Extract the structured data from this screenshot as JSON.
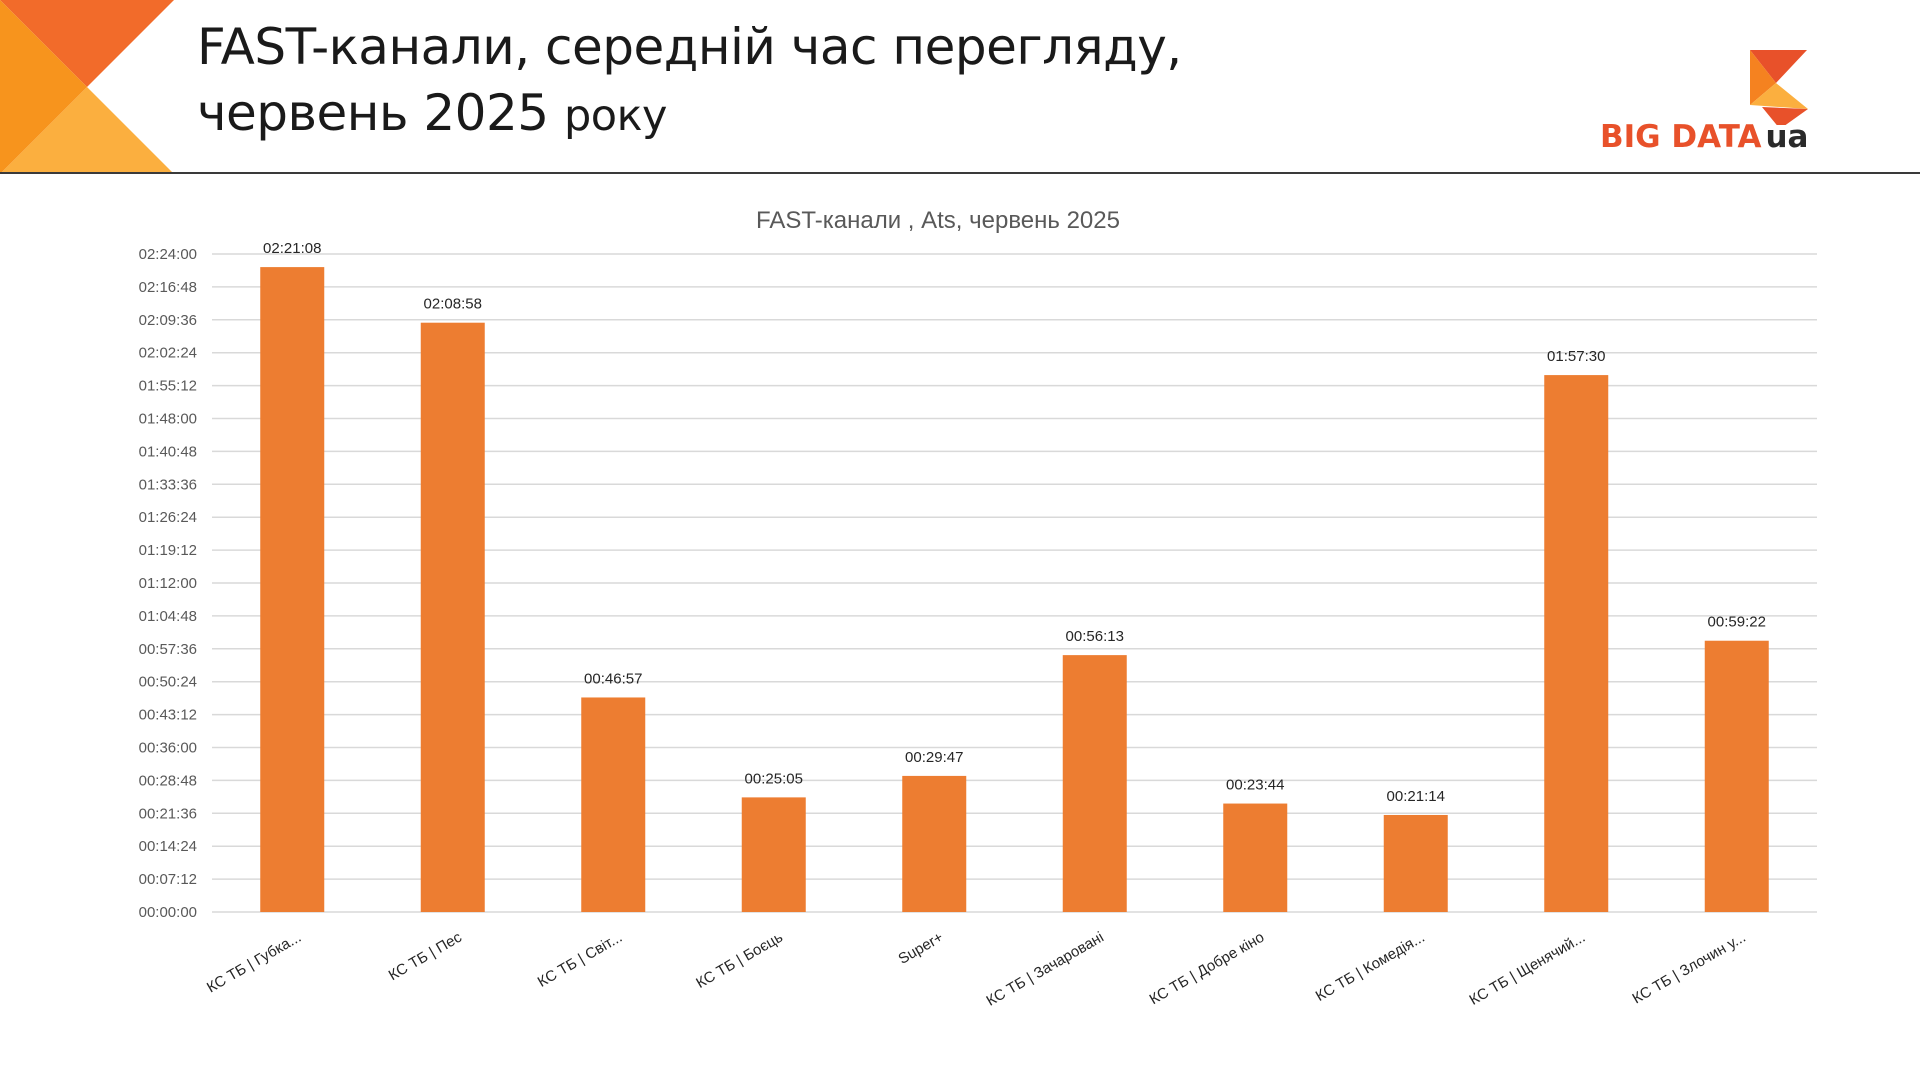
{
  "header": {
    "title_line1": "FAST-канали, середній час перегляду,",
    "title_line2_main": "червень 2025",
    "title_line2_small": "року"
  },
  "logo": {
    "text_main": "BIG DATA",
    "text_suffix": "ua"
  },
  "colors": {
    "bar": "#ED7D31",
    "gridline": "#D9D9D9",
    "corner_dark": "#F26B2A",
    "corner_light": "#FBAF3F",
    "logo_orange": "#E8512A"
  },
  "chart_data": {
    "type": "bar",
    "title": "FAST-канали , Ats, червень 2025",
    "categories": [
      "КС ТБ | Губка...",
      "КС ТБ | Пес",
      "КС ТБ | Світ...",
      "КС ТБ | Боєць",
      "Super+",
      "КС ТБ | Зачаровані",
      "КС ТБ | Добре кіно",
      "КС ТБ | Комедія...",
      "КС ТБ | Щенячий...",
      "КС ТБ | Злочин у..."
    ],
    "values": [
      "02:21:08",
      "02:08:58",
      "00:46:57",
      "00:25:05",
      "00:29:47",
      "00:56:13",
      "00:23:44",
      "00:21:14",
      "01:57:30",
      "00:59:22"
    ],
    "y_ticks": [
      "00:00:00",
      "00:07:12",
      "00:14:24",
      "00:21:36",
      "00:28:48",
      "00:36:00",
      "00:43:12",
      "00:50:24",
      "00:57:36",
      "01:04:48",
      "01:12:00",
      "01:19:12",
      "01:26:24",
      "01:33:36",
      "01:40:48",
      "01:48:00",
      "01:55:12",
      "02:02:24",
      "02:09:36",
      "02:16:48",
      "02:24:00"
    ],
    "ylim": [
      "00:00:00",
      "02:24:00"
    ],
    "grid": true,
    "legend": "none"
  }
}
